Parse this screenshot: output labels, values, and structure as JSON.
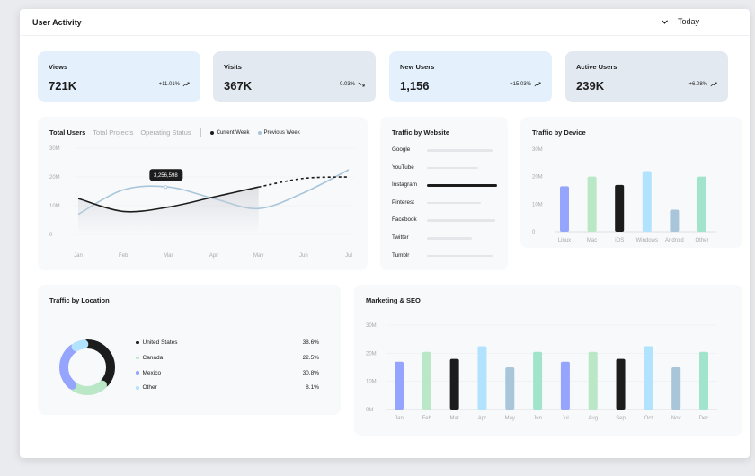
{
  "header": {
    "title": "User Activity",
    "range_label": "Today"
  },
  "stats": [
    {
      "label": "Views",
      "value": "721K",
      "change": "+11.01%",
      "trend": "up",
      "bg": "#e4f1fd"
    },
    {
      "label": "Visits",
      "value": "367K",
      "change": "-0.03%",
      "trend": "down",
      "bg": "#e3e9f1"
    },
    {
      "label": "New Users",
      "value": "1,156",
      "change": "+15.03%",
      "trend": "up",
      "bg": "#e4f1fd"
    },
    {
      "label": "Active Users",
      "value": "239K",
      "change": "+6.08%",
      "trend": "up",
      "bg": "#e3e9f1"
    }
  ],
  "total_users": {
    "tabs": [
      "Total Users",
      "Total Projects",
      "Operating Status"
    ],
    "legend": [
      {
        "name": "Current Week",
        "color": "#1c1c1c"
      },
      {
        "name": "Previous Week",
        "color": "#a8c5da"
      }
    ],
    "tooltip": "3,256,598"
  },
  "traffic_website": {
    "title": "Traffic by Website",
    "sites": [
      {
        "name": "Google",
        "value": 0.7,
        "color": "#e5e6ea"
      },
      {
        "name": "YouTube",
        "value": 0.55,
        "color": "#e5e6ea"
      },
      {
        "name": "Instagram",
        "value": 0.75,
        "color": "#1c1c1c"
      },
      {
        "name": "Pinterest",
        "value": 0.58,
        "color": "#e5e6ea"
      },
      {
        "name": "Facebook",
        "value": 0.73,
        "color": "#e5e6ea"
      },
      {
        "name": "Twitter",
        "value": 0.48,
        "color": "#e5e6ea"
      },
      {
        "name": "Tumblr",
        "value": 0.7,
        "color": "#e5e6ea"
      }
    ]
  },
  "traffic_location": {
    "title": "Traffic by Location",
    "items": [
      {
        "name": "United States",
        "pct": "38.6%",
        "value": 38.6,
        "color": "#1c1c1c"
      },
      {
        "name": "Canada",
        "pct": "22.5%",
        "value": 22.5,
        "color": "#bae7c6"
      },
      {
        "name": "Mexico",
        "pct": "30.8%",
        "value": 30.8,
        "color": "#95a4fc"
      },
      {
        "name": "Other",
        "pct": "8.1%",
        "value": 8.1,
        "color": "#b1e3ff"
      }
    ]
  },
  "chart_data": [
    {
      "type": "line",
      "x": [
        "Jan",
        "Feb",
        "Mar",
        "Apr",
        "May",
        "Jun",
        "Jul"
      ],
      "yticks": [
        "0",
        "10M",
        "20M",
        "30M"
      ],
      "ylim": [
        0,
        30000000
      ],
      "series": [
        {
          "name": "Current Week",
          "values": [
            12500000,
            8000000,
            9500000,
            13000000,
            16500000,
            19500000,
            20000000
          ],
          "color": "#1c1c1c",
          "dashed_from_index": 4
        },
        {
          "name": "Previous Week",
          "values": [
            7000000,
            15500000,
            16500000,
            12500000,
            9000000,
            14500000,
            22500000
          ],
          "color": "#a8c5da"
        }
      ]
    },
    {
      "type": "bar",
      "title": "Traffic by Device",
      "categories": [
        "Linux",
        "Mac",
        "iOS",
        "Windows",
        "Android",
        "Other"
      ],
      "values": [
        16500000,
        20000000,
        17000000,
        22000000,
        8000000,
        20000000
      ],
      "colors": [
        "#95a4fc",
        "#bae7c6",
        "#1c1c1c",
        "#b1e3ff",
        "#a8c5da",
        "#a1e3cb"
      ],
      "yticks": [
        "0",
        "10M",
        "20M",
        "30M"
      ],
      "ylim": [
        0,
        30000000
      ]
    },
    {
      "type": "bar",
      "title": "Marketing & SEO",
      "categories": [
        "Jan",
        "Feb",
        "Mar",
        "Apr",
        "May",
        "Jun",
        "Jul",
        "Aug",
        "Sep",
        "Oct",
        "Nov",
        "Dec"
      ],
      "values": [
        17000000,
        20500000,
        18000000,
        22500000,
        15000000,
        20500000,
        17000000,
        20500000,
        18000000,
        22500000,
        15000000,
        20500000
      ],
      "colors": [
        "#95a4fc",
        "#bae7c6",
        "#1c1c1c",
        "#b1e3ff",
        "#a8c5da",
        "#a1e3cb",
        "#95a4fc",
        "#bae7c6",
        "#1c1c1c",
        "#b1e3ff",
        "#a8c5da",
        "#a1e3cb"
      ],
      "yticks": [
        "0M",
        "10M",
        "20M",
        "30M"
      ],
      "ylim": [
        0,
        30000000
      ]
    },
    {
      "type": "pie",
      "categories": [
        "United States",
        "Canada",
        "Mexico",
        "Other"
      ],
      "values": [
        38.6,
        22.5,
        30.8,
        8.1
      ]
    }
  ]
}
